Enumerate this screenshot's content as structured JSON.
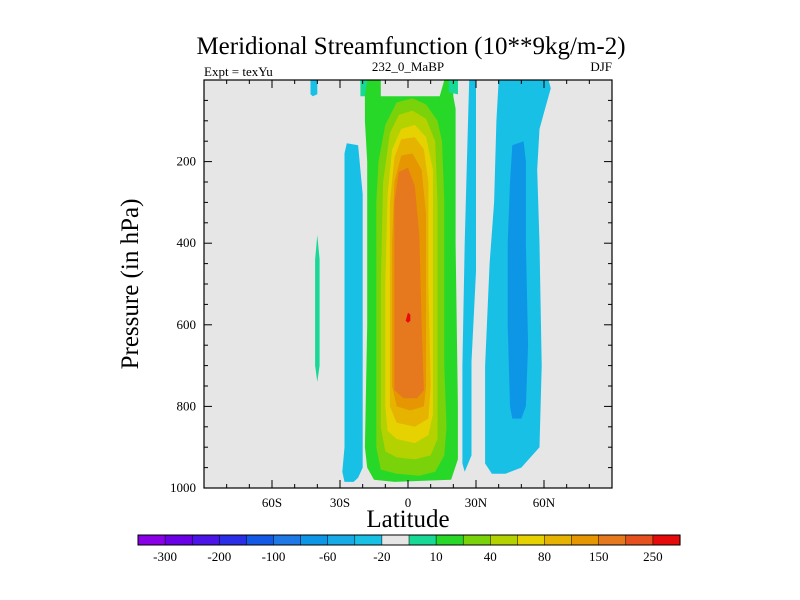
{
  "chart_data": {
    "type": "contour",
    "title": "Meridional Streamfunction (10**9kg/m-2)",
    "subtitle_left": "Expt = texYu",
    "subtitle_center": "232_0_MaBP",
    "subtitle_right": "DJF",
    "xlabel": "Latitude",
    "ylabel": "Pressure (in hPa)",
    "xlim": [
      -90,
      90
    ],
    "ylim": [
      1000,
      0
    ],
    "x_ticks": [
      {
        "value": -60,
        "label": "60S"
      },
      {
        "value": -30,
        "label": "30S"
      },
      {
        "value": 0,
        "label": "0"
      },
      {
        "value": 30,
        "label": "30N"
      },
      {
        "value": 60,
        "label": "60N"
      }
    ],
    "y_ticks": [
      {
        "value": 200,
        "label": "200"
      },
      {
        "value": 400,
        "label": "400"
      },
      {
        "value": 600,
        "label": "600"
      },
      {
        "value": 800,
        "label": "800"
      },
      {
        "value": 1000,
        "label": "1000"
      }
    ],
    "background_color": "#e6e6e6",
    "colorbar": {
      "colors": [
        "#8a00e6",
        "#6a00e6",
        "#4c14e6",
        "#2a2ee6",
        "#1458e6",
        "#1e78e6",
        "#0e96e6",
        "#16aae6",
        "#18c0e6",
        "#e6e6e6",
        "#18d896",
        "#28d828",
        "#7ad20a",
        "#b4d200",
        "#e6d200",
        "#e6b400",
        "#e69600",
        "#e6781e",
        "#e6501e",
        "#e60a0a"
      ],
      "labels": [
        {
          "edge": 1,
          "text": "-300"
        },
        {
          "edge": 3,
          "text": "-200"
        },
        {
          "edge": 5,
          "text": "-100"
        },
        {
          "edge": 7,
          "text": "-60"
        },
        {
          "edge": 9,
          "text": "-20"
        },
        {
          "edge": 11,
          "text": "10"
        },
        {
          "edge": 13,
          "text": "40"
        },
        {
          "edge": 15,
          "text": "80"
        },
        {
          "edge": 17,
          "text": "150"
        },
        {
          "edge": 19,
          "text": "250"
        }
      ]
    },
    "contour_regions": [
      {
        "name": "sh-subpolar-cell",
        "color": "#18c0e6",
        "points": [
          [
            -43,
            0
          ],
          [
            -40,
            0
          ],
          [
            -40,
            35
          ],
          [
            -42,
            40
          ],
          [
            -43,
            35
          ]
        ]
      },
      {
        "name": "sh-ferrel-cell-outer",
        "color": "#18c0e6",
        "points": [
          [
            -27,
            155
          ],
          [
            -22,
            160
          ],
          [
            -20,
            280
          ],
          [
            -20,
            950
          ],
          [
            -22,
            975
          ],
          [
            -24,
            985
          ],
          [
            -28,
            985
          ],
          [
            -29,
            960
          ],
          [
            -28,
            900
          ],
          [
            -28,
            300
          ],
          [
            -28,
            180
          ]
        ]
      },
      {
        "name": "sh-ferrel-weak-strip",
        "color": "#18d896",
        "points": [
          [
            -40,
            380
          ],
          [
            -39,
            440
          ],
          [
            -39,
            700
          ],
          [
            -40,
            740
          ],
          [
            -41,
            700
          ],
          [
            -41,
            440
          ]
        ]
      },
      {
        "name": "hadley-10",
        "color": "#18d896",
        "points": [
          [
            -21,
            0
          ],
          [
            8,
            0
          ],
          [
            18,
            0
          ],
          [
            22,
            0
          ],
          [
            22,
            35
          ],
          [
            18,
            30
          ],
          [
            16,
            0
          ],
          [
            8,
            0
          ],
          [
            -14,
            0
          ],
          [
            -14,
            40
          ],
          [
            -21,
            40
          ]
        ]
      },
      {
        "name": "hadley-20",
        "color": "#28d828",
        "points": [
          [
            -18,
            0
          ],
          [
            -12,
            0
          ],
          [
            -12,
            40
          ],
          [
            14,
            40
          ],
          [
            16,
            0
          ],
          [
            20,
            0
          ],
          [
            20,
            40
          ],
          [
            21,
            70
          ],
          [
            21,
            400
          ],
          [
            22,
            800
          ],
          [
            22,
            930
          ],
          [
            19,
            980
          ],
          [
            -6,
            985
          ],
          [
            -15,
            980
          ],
          [
            -18,
            950
          ],
          [
            -19,
            900
          ],
          [
            -18,
            600
          ],
          [
            -18,
            200
          ],
          [
            -19,
            100
          ],
          [
            -19,
            40
          ]
        ]
      },
      {
        "name": "hadley-40",
        "color": "#7ad20a",
        "points": [
          [
            -5,
            55
          ],
          [
            2,
            45
          ],
          [
            8,
            60
          ],
          [
            13,
            100
          ],
          [
            15,
            150
          ],
          [
            16,
            300
          ],
          [
            16,
            700
          ],
          [
            17,
            850
          ],
          [
            16,
            920
          ],
          [
            12,
            960
          ],
          [
            5,
            970
          ],
          [
            -5,
            965
          ],
          [
            -12,
            955
          ],
          [
            -14,
            900
          ],
          [
            -14,
            600
          ],
          [
            -14,
            300
          ],
          [
            -13,
            200
          ],
          [
            -10,
            110
          ]
        ]
      },
      {
        "name": "hadley-60",
        "color": "#b4d200",
        "points": [
          [
            -4,
            85
          ],
          [
            2,
            75
          ],
          [
            8,
            95
          ],
          [
            12,
            150
          ],
          [
            13,
            300
          ],
          [
            13,
            750
          ],
          [
            13,
            880
          ],
          [
            10,
            920
          ],
          [
            3,
            930
          ],
          [
            -5,
            925
          ],
          [
            -10,
            910
          ],
          [
            -12,
            850
          ],
          [
            -12,
            500
          ],
          [
            -11,
            250
          ],
          [
            -8,
            130
          ]
        ]
      },
      {
        "name": "hadley-80",
        "color": "#e6d200",
        "points": [
          [
            -3,
            120
          ],
          [
            3,
            110
          ],
          [
            8,
            140
          ],
          [
            11,
            220
          ],
          [
            11,
            500
          ],
          [
            11,
            820
          ],
          [
            9,
            870
          ],
          [
            3,
            890
          ],
          [
            -5,
            880
          ],
          [
            -9,
            860
          ],
          [
            -10,
            800
          ],
          [
            -10,
            500
          ],
          [
            -9,
            280
          ],
          [
            -7,
            170
          ]
        ]
      },
      {
        "name": "hadley-100",
        "color": "#e6b400",
        "points": [
          [
            -3,
            145
          ],
          [
            3,
            140
          ],
          [
            7,
            170
          ],
          [
            9,
            250
          ],
          [
            9,
            500
          ],
          [
            10,
            750
          ],
          [
            9,
            830
          ],
          [
            3,
            850
          ],
          [
            -5,
            840
          ],
          [
            -8,
            800
          ],
          [
            -8,
            500
          ],
          [
            -8,
            300
          ],
          [
            -6,
            190
          ]
        ]
      },
      {
        "name": "hadley-150",
        "color": "#e69600",
        "points": [
          [
            -3,
            185
          ],
          [
            2,
            180
          ],
          [
            6,
            220
          ],
          [
            8,
            330
          ],
          [
            8,
            750
          ],
          [
            7,
            800
          ],
          [
            1,
            810
          ],
          [
            -5,
            800
          ],
          [
            -7,
            750
          ],
          [
            -7,
            400
          ],
          [
            -6,
            250
          ]
        ]
      },
      {
        "name": "hadley-200",
        "color": "#e6781e",
        "points": [
          [
            -4,
            225
          ],
          [
            0,
            215
          ],
          [
            3,
            260
          ],
          [
            5,
            380
          ],
          [
            6,
            600
          ],
          [
            7,
            760
          ],
          [
            4,
            780
          ],
          [
            -2,
            780
          ],
          [
            -6,
            760
          ],
          [
            -6,
            500
          ],
          [
            -6,
            300
          ]
        ]
      },
      {
        "name": "hadley-250",
        "color": "#e60a0a",
        "points": [
          [
            0,
            570
          ],
          [
            1,
            575
          ],
          [
            1,
            590
          ],
          [
            0,
            595
          ],
          [
            -1,
            590
          ]
        ]
      },
      {
        "name": "nh-ferrel-outer",
        "color": "#18c0e6",
        "points": [
          [
            27,
            0
          ],
          [
            30,
            0
          ],
          [
            30,
            470
          ],
          [
            28,
            690
          ],
          [
            28,
            920
          ],
          [
            25,
            960
          ],
          [
            24,
            940
          ],
          [
            24,
            700
          ],
          [
            25,
            400
          ],
          [
            26,
            200
          ]
        ]
      },
      {
        "name": "nh-polar-cell-outer",
        "color": "#18c0e6",
        "points": [
          [
            40,
            0
          ],
          [
            62,
            0
          ],
          [
            63,
            20
          ],
          [
            60,
            80
          ],
          [
            58,
            120
          ],
          [
            57,
            220
          ],
          [
            58,
            400
          ],
          [
            59,
            700
          ],
          [
            58,
            900
          ],
          [
            50,
            950
          ],
          [
            43,
            965
          ],
          [
            37,
            965
          ],
          [
            34,
            940
          ],
          [
            34,
            700
          ],
          [
            36,
            450
          ],
          [
            38,
            300
          ],
          [
            39,
            100
          ]
        ]
      },
      {
        "name": "nh-polar-cell-inner",
        "color": "#0e96e6",
        "points": [
          [
            46,
            160
          ],
          [
            51,
            150
          ],
          [
            52,
            200
          ],
          [
            52,
            400
          ],
          [
            53,
            650
          ],
          [
            52,
            800
          ],
          [
            50,
            830
          ],
          [
            46,
            830
          ],
          [
            45,
            800
          ],
          [
            44,
            600
          ],
          [
            44,
            400
          ],
          [
            45,
            250
          ]
        ]
      },
      {
        "name": "nh-weak-top",
        "color": "#18d896",
        "points": [
          [
            18,
            0
          ],
          [
            22,
            0
          ],
          [
            22,
            35
          ],
          [
            18,
            30
          ]
        ]
      }
    ]
  }
}
